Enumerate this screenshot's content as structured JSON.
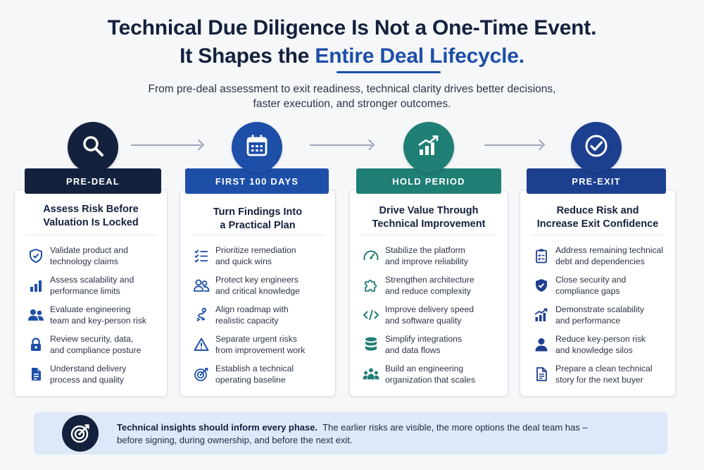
{
  "header": {
    "title_line1": "Technical Due Diligence Is Not a One-Time Event.",
    "title_line2_prefix": "It Shapes the ",
    "title_line2_accent": "Entire Deal Lifecycle.",
    "subtitle_line1": "From pre-deal assessment to exit readiness, technical clarity drives better decisions,",
    "subtitle_line2": "faster execution, and stronger outcomes."
  },
  "colors": {
    "navy": "#14213d",
    "blue": "#1d4fa8",
    "teal": "#1f7f74",
    "royal": "#1d3f8f"
  },
  "phases": [
    {
      "label": "PRE-DEAL",
      "icon": "search-icon",
      "title_line1": "Assess Risk Before",
      "title_line2": "Valuation Is Locked",
      "items": [
        {
          "icon": "shield-check-icon",
          "line1": "Validate product and",
          "line2": "technology claims"
        },
        {
          "icon": "bar-chart-icon",
          "line1": "Assess scalability and",
          "line2": "performance limits"
        },
        {
          "icon": "team-icon",
          "line1": "Evaluate engineering",
          "line2": "team and key-person risk"
        },
        {
          "icon": "lock-icon",
          "line1": "Review security, data,",
          "line2": "and compliance posture"
        },
        {
          "icon": "document-icon",
          "line1": "Understand delivery",
          "line2": "process and quality"
        }
      ]
    },
    {
      "label": "FIRST 100 DAYS",
      "icon": "calendar-icon",
      "title_line1": "Turn Findings Into",
      "title_line2": "a Practical Plan",
      "items": [
        {
          "icon": "checklist-icon",
          "line1": "Prioritize remediation",
          "line2": "and quick wins"
        },
        {
          "icon": "people-icon",
          "line1": "Protect key engineers",
          "line2": "and critical knowledge"
        },
        {
          "icon": "route-icon",
          "line1": "Align roadmap with",
          "line2": "realistic capacity"
        },
        {
          "icon": "warning-icon",
          "line1": "Separate urgent risks",
          "line2": "from improvement work"
        },
        {
          "icon": "target-icon",
          "line1": "Establish a technical",
          "line2": "operating baseline"
        }
      ]
    },
    {
      "label": "HOLD PERIOD",
      "icon": "growth-chart-icon",
      "title_line1": "Drive Value Through",
      "title_line2": "Technical Improvement",
      "items": [
        {
          "icon": "gauge-icon",
          "line1": "Stabilize the platform",
          "line2": "and improve reliability"
        },
        {
          "icon": "puzzle-icon",
          "line1": "Strengthen architecture",
          "line2": "and reduce complexity"
        },
        {
          "icon": "code-icon",
          "line1": "Improve delivery speed",
          "line2": "and software quality"
        },
        {
          "icon": "database-icon",
          "line1": "Simplify integrations",
          "line2": "and data flows"
        },
        {
          "icon": "org-icon",
          "line1": "Build an engineering",
          "line2": "organization that scales"
        }
      ]
    },
    {
      "label": "PRE-EXIT",
      "icon": "check-circle-icon",
      "title_line1": "Reduce Risk and",
      "title_line2": "Increase Exit Confidence",
      "items": [
        {
          "icon": "clipboard-check-icon",
          "line1": "Address remaining technical",
          "line2": "debt and dependencies"
        },
        {
          "icon": "shield-check-icon",
          "line1": "Close security and",
          "line2": "compliance gaps"
        },
        {
          "icon": "growth-bars-icon",
          "line1": "Demonstrate scalability",
          "line2": "and performance"
        },
        {
          "icon": "person-icon",
          "line1": "Reduce key-person risk",
          "line2": "and knowledge silos"
        },
        {
          "icon": "document-icon",
          "line1": "Prepare a clean technical",
          "line2": "story for the next buyer"
        }
      ]
    }
  ],
  "footer": {
    "icon": "bullseye-icon",
    "bold": "Technical insights should inform every phase.",
    "text_line1": "The earlier risks are visible, the more options the deal team has –",
    "text_line2": "before signing, during ownership, and before the next exit."
  }
}
